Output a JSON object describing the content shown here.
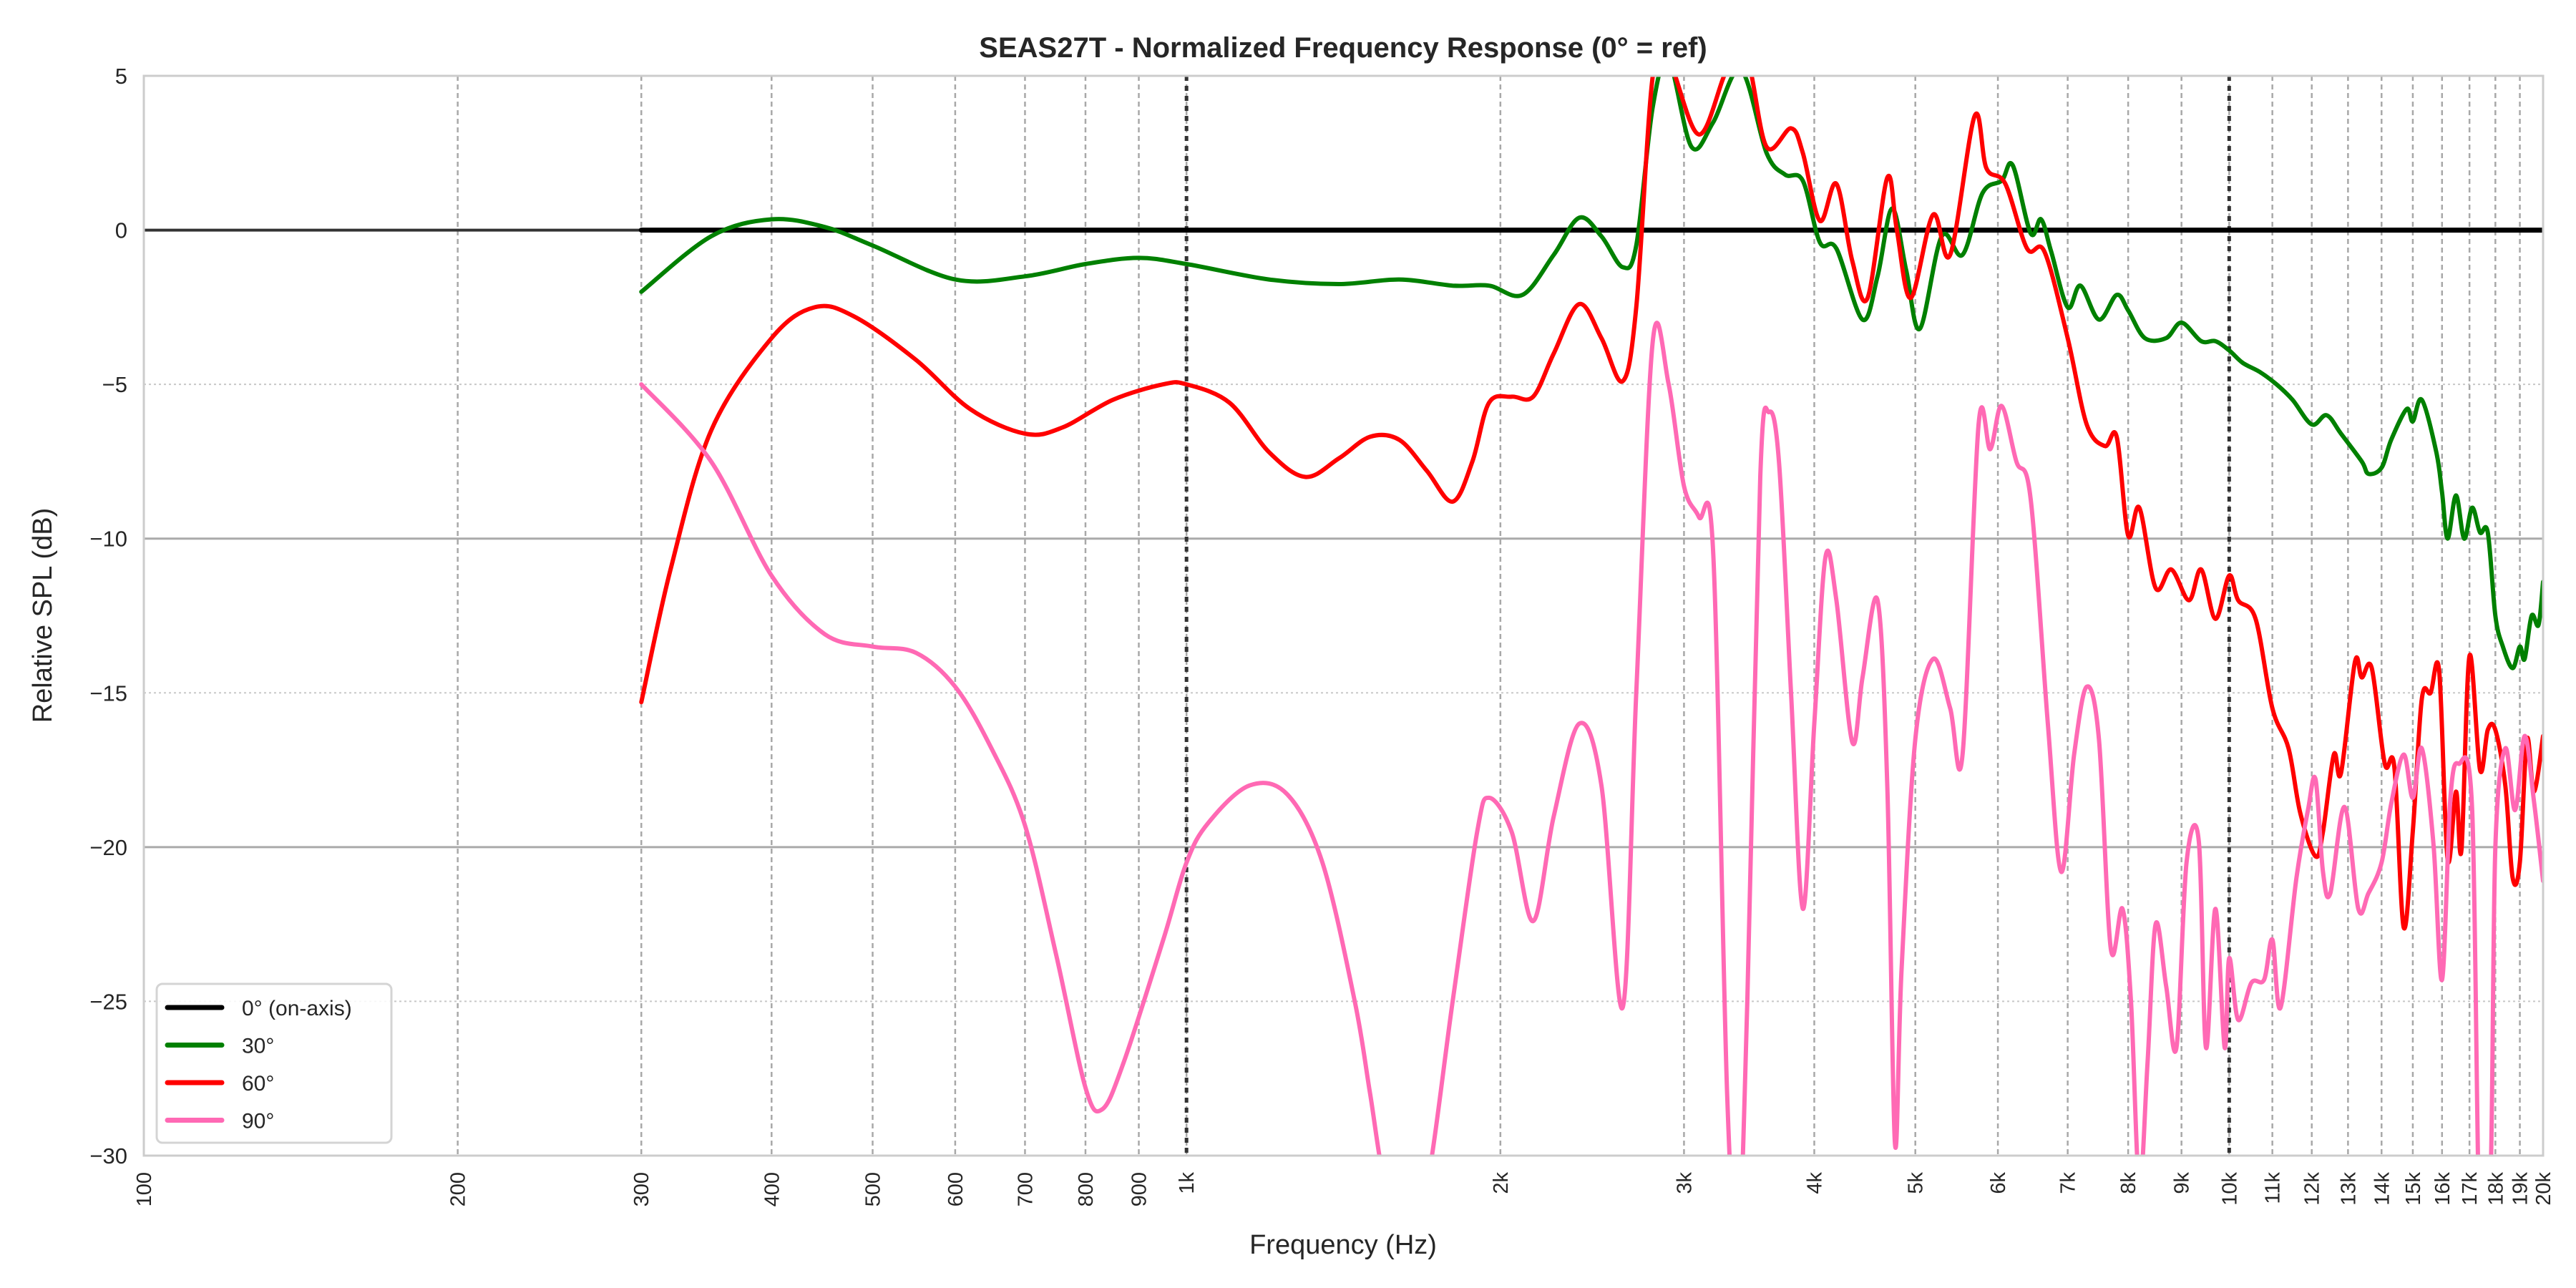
{
  "chart_data": {
    "type": "line",
    "title": "SEAS27T - Normalized Frequency Response (0° = ref)",
    "xlabel": "Frequency (Hz)",
    "ylabel": "Relative SPL (dB)",
    "xscale": "log",
    "xlim": [
      100,
      20000
    ],
    "ylim": [
      -30,
      5
    ],
    "grid": true,
    "legend_position": "lower-left",
    "reference_lines_hz": [
      1000,
      10000
    ],
    "yticks": [
      5,
      0,
      -5,
      -10,
      -15,
      -20,
      -25,
      -30
    ],
    "ytick_labels": [
      "5",
      "0",
      "−5",
      "−10",
      "−15",
      "−20",
      "−25",
      "−30"
    ],
    "xticks": [
      100,
      200,
      300,
      400,
      500,
      600,
      700,
      800,
      900,
      1000,
      2000,
      3000,
      4000,
      5000,
      6000,
      7000,
      8000,
      9000,
      10000,
      11000,
      12000,
      13000,
      14000,
      15000,
      16000,
      17000,
      18000,
      19000,
      20000
    ],
    "xtick_labels": [
      "100",
      "200",
      "300",
      "400",
      "500",
      "600",
      "700",
      "800",
      "900",
      "1k",
      "2k",
      "3k",
      "4k",
      "5k",
      "6k",
      "7k",
      "8k",
      "9k",
      "10k",
      "11k",
      "12k",
      "13k",
      "14k",
      "15k",
      "16k",
      "17k",
      "18k",
      "19k",
      "20k"
    ],
    "series": [
      {
        "name": "0° (on-axis)",
        "color": "#000000",
        "points": [
          [
            300,
            0
          ],
          [
            20000,
            0
          ]
        ]
      },
      {
        "name": "30°",
        "color": "#008000",
        "points": [
          [
            300,
            -2
          ],
          [
            350,
            -0.2
          ],
          [
            400,
            0.35
          ],
          [
            450,
            0.1
          ],
          [
            500,
            -0.5
          ],
          [
            600,
            -1.6
          ],
          [
            700,
            -1.5
          ],
          [
            800,
            -1.1
          ],
          [
            900,
            -0.9
          ],
          [
            1000,
            -1.1
          ],
          [
            1200,
            -1.6
          ],
          [
            1400,
            -1.75
          ],
          [
            1600,
            -1.6
          ],
          [
            1800,
            -1.8
          ],
          [
            1950,
            -1.8
          ],
          [
            2100,
            -2.1
          ],
          [
            2250,
            -0.8
          ],
          [
            2380,
            0.4
          ],
          [
            2500,
            -0.2
          ],
          [
            2620,
            -1.2
          ],
          [
            2700,
            -0.5
          ],
          [
            2800,
            4
          ],
          [
            2900,
            5.5
          ],
          [
            3050,
            2.7
          ],
          [
            3200,
            3.5
          ],
          [
            3400,
            5.2
          ],
          [
            3600,
            2.5
          ],
          [
            3750,
            1.8
          ],
          [
            3900,
            1.6
          ],
          [
            4050,
            -0.4
          ],
          [
            4200,
            -0.6
          ],
          [
            4450,
            -2.9
          ],
          [
            4600,
            -1.5
          ],
          [
            4750,
            0.7
          ],
          [
            4900,
            -1.3
          ],
          [
            5050,
            -3.2
          ],
          [
            5300,
            -0.2
          ],
          [
            5550,
            -0.8
          ],
          [
            5800,
            1.2
          ],
          [
            6050,
            1.6
          ],
          [
            6200,
            2.1
          ],
          [
            6450,
            -0.1
          ],
          [
            6600,
            0.35
          ],
          [
            6750,
            -0.7
          ],
          [
            7000,
            -2.5
          ],
          [
            7200,
            -1.8
          ],
          [
            7500,
            -2.9
          ],
          [
            7800,
            -2.1
          ],
          [
            8000,
            -2.6
          ],
          [
            8300,
            -3.5
          ],
          [
            8700,
            -3.5
          ],
          [
            9000,
            -3.0
          ],
          [
            9400,
            -3.6
          ],
          [
            9700,
            -3.6
          ],
          [
            10000,
            -3.9
          ],
          [
            10300,
            -4.3
          ],
          [
            10700,
            -4.6
          ],
          [
            11100,
            -5.0
          ],
          [
            11500,
            -5.5
          ],
          [
            12000,
            -6.3
          ],
          [
            12400,
            -6.0
          ],
          [
            12800,
            -6.6
          ],
          [
            13400,
            -7.5
          ],
          [
            13600,
            -7.9
          ],
          [
            14000,
            -7.7
          ],
          [
            14300,
            -6.8
          ],
          [
            14800,
            -5.8
          ],
          [
            15000,
            -6.2
          ],
          [
            15300,
            -5.5
          ],
          [
            15800,
            -7.2
          ],
          [
            16000,
            -8.5
          ],
          [
            16200,
            -10
          ],
          [
            16500,
            -8.6
          ],
          [
            16800,
            -10
          ],
          [
            17100,
            -9.0
          ],
          [
            17400,
            -9.8
          ],
          [
            17700,
            -9.8
          ],
          [
            18000,
            -12.5
          ],
          [
            18300,
            -13.5
          ],
          [
            18700,
            -14.2
          ],
          [
            19000,
            -13.5
          ],
          [
            19200,
            -13.9
          ],
          [
            19500,
            -12.5
          ],
          [
            19800,
            -12.8
          ],
          [
            20000,
            -11.4
          ]
        ]
      },
      {
        "name": "60°",
        "color": "#ff0000",
        "points": [
          [
            300,
            -15.3
          ],
          [
            320,
            -11
          ],
          [
            350,
            -6.5
          ],
          [
            400,
            -3.5
          ],
          [
            440,
            -2.5
          ],
          [
            480,
            -2.8
          ],
          [
            550,
            -4.2
          ],
          [
            620,
            -5.8
          ],
          [
            700,
            -6.6
          ],
          [
            760,
            -6.4
          ],
          [
            850,
            -5.5
          ],
          [
            950,
            -5.0
          ],
          [
            1000,
            -5.0
          ],
          [
            1100,
            -5.6
          ],
          [
            1200,
            -7.2
          ],
          [
            1300,
            -8.0
          ],
          [
            1400,
            -7.4
          ],
          [
            1500,
            -6.7
          ],
          [
            1600,
            -6.8
          ],
          [
            1700,
            -7.8
          ],
          [
            1800,
            -8.8
          ],
          [
            1880,
            -7.5
          ],
          [
            1950,
            -5.6
          ],
          [
            2050,
            -5.4
          ],
          [
            2150,
            -5.4
          ],
          [
            2250,
            -4.0
          ],
          [
            2380,
            -2.4
          ],
          [
            2500,
            -3.5
          ],
          [
            2620,
            -4.9
          ],
          [
            2700,
            -2.5
          ],
          [
            2800,
            5
          ],
          [
            2900,
            5.5
          ],
          [
            3100,
            3.1
          ],
          [
            3300,
            5.2
          ],
          [
            3450,
            5.5
          ],
          [
            3600,
            2.7
          ],
          [
            3800,
            3.3
          ],
          [
            3900,
            2.5
          ],
          [
            4050,
            0.3
          ],
          [
            4200,
            1.5
          ],
          [
            4350,
            -1.0
          ],
          [
            4500,
            -2.2
          ],
          [
            4700,
            1.7
          ],
          [
            4800,
            0
          ],
          [
            4950,
            -2.2
          ],
          [
            5200,
            0.5
          ],
          [
            5400,
            -0.8
          ],
          [
            5700,
            3.7
          ],
          [
            5850,
            2.0
          ],
          [
            6100,
            1.5
          ],
          [
            6400,
            -0.6
          ],
          [
            6650,
            -0.7
          ],
          [
            7000,
            -3.5
          ],
          [
            7300,
            -6.3
          ],
          [
            7600,
            -7.0
          ],
          [
            7800,
            -6.7
          ],
          [
            8000,
            -9.9
          ],
          [
            8200,
            -9.0
          ],
          [
            8500,
            -11.6
          ],
          [
            8800,
            -11
          ],
          [
            9150,
            -12.0
          ],
          [
            9400,
            -11
          ],
          [
            9700,
            -12.6
          ],
          [
            10000,
            -11.2
          ],
          [
            10200,
            -12.0
          ],
          [
            10600,
            -12.6
          ],
          [
            11000,
            -15.5
          ],
          [
            11400,
            -16.8
          ],
          [
            11700,
            -18.9
          ],
          [
            12100,
            -20.3
          ],
          [
            12300,
            -19.5
          ],
          [
            12600,
            -17.0
          ],
          [
            12800,
            -17.6
          ],
          [
            13200,
            -14
          ],
          [
            13400,
            -14.5
          ],
          [
            13700,
            -14.2
          ],
          [
            14100,
            -17.3
          ],
          [
            14400,
            -17.4
          ],
          [
            14700,
            -22.6
          ],
          [
            15000,
            -19.5
          ],
          [
            15300,
            -15.2
          ],
          [
            15600,
            -15
          ],
          [
            15900,
            -14.3
          ],
          [
            16200,
            -20.4
          ],
          [
            16500,
            -18.2
          ],
          [
            16700,
            -20.1
          ],
          [
            17000,
            -13.8
          ],
          [
            17400,
            -17.5
          ],
          [
            17700,
            -16.2
          ],
          [
            18000,
            -16.2
          ],
          [
            18400,
            -18.0
          ],
          [
            18700,
            -21.0
          ],
          [
            19000,
            -20.5
          ],
          [
            19300,
            -16.5
          ],
          [
            19600,
            -18.2
          ],
          [
            20000,
            -16.4
          ]
        ]
      },
      {
        "name": "90°",
        "color": "#ff69b4",
        "points": [
          [
            300,
            -5
          ],
          [
            350,
            -7.5
          ],
          [
            400,
            -11.2
          ],
          [
            450,
            -13.1
          ],
          [
            500,
            -13.5
          ],
          [
            550,
            -13.7
          ],
          [
            600,
            -14.8
          ],
          [
            650,
            -16.8
          ],
          [
            700,
            -19.3
          ],
          [
            750,
            -23.5
          ],
          [
            800,
            -27.8
          ],
          [
            830,
            -28.5
          ],
          [
            870,
            -27
          ],
          [
            950,
            -23
          ],
          [
            1000,
            -20.5
          ],
          [
            1050,
            -19.2
          ],
          [
            1150,
            -18
          ],
          [
            1250,
            -18.3
          ],
          [
            1350,
            -20.5
          ],
          [
            1450,
            -25
          ],
          [
            1500,
            -28
          ],
          [
            1550,
            -31
          ],
          [
            1620,
            -33
          ],
          [
            1700,
            -31
          ],
          [
            1800,
            -25
          ],
          [
            1900,
            -19.5
          ],
          [
            1950,
            -18.4
          ],
          [
            2050,
            -19.5
          ],
          [
            2150,
            -22.4
          ],
          [
            2250,
            -19
          ],
          [
            2380,
            -16
          ],
          [
            2500,
            -18
          ],
          [
            2620,
            -25.2
          ],
          [
            2700,
            -15
          ],
          [
            2800,
            -3.6
          ],
          [
            2900,
            -5
          ],
          [
            3000,
            -8.3
          ],
          [
            3100,
            -9.3
          ],
          [
            3200,
            -10.5
          ],
          [
            3300,
            -28
          ],
          [
            3380,
            -33
          ],
          [
            3450,
            -25
          ],
          [
            3550,
            -8
          ],
          [
            3620,
            -5.9
          ],
          [
            3700,
            -7.5
          ],
          [
            3800,
            -15
          ],
          [
            3900,
            -22
          ],
          [
            4000,
            -16
          ],
          [
            4100,
            -10.6
          ],
          [
            4200,
            -12
          ],
          [
            4350,
            -16.6
          ],
          [
            4450,
            -14.5
          ],
          [
            4600,
            -12
          ],
          [
            4700,
            -18
          ],
          [
            4780,
            -29.6
          ],
          [
            4850,
            -24
          ],
          [
            5000,
            -16.5
          ],
          [
            5200,
            -13.9
          ],
          [
            5400,
            -15.5
          ],
          [
            5550,
            -17
          ],
          [
            5750,
            -6.3
          ],
          [
            5900,
            -7.1
          ],
          [
            6050,
            -5.7
          ],
          [
            6250,
            -7.5
          ],
          [
            6450,
            -8.7
          ],
          [
            6700,
            -16
          ],
          [
            6900,
            -20.8
          ],
          [
            7100,
            -17
          ],
          [
            7300,
            -14.8
          ],
          [
            7500,
            -16.5
          ],
          [
            7700,
            -23.3
          ],
          [
            7900,
            -22
          ],
          [
            8050,
            -25
          ],
          [
            8200,
            -31
          ],
          [
            8350,
            -27
          ],
          [
            8500,
            -22.5
          ],
          [
            8700,
            -24.5
          ],
          [
            8900,
            -26.5
          ],
          [
            9100,
            -20.5
          ],
          [
            9350,
            -19.8
          ],
          [
            9500,
            -26.5
          ],
          [
            9700,
            -22
          ],
          [
            9900,
            -26.5
          ],
          [
            10000,
            -23.6
          ],
          [
            10200,
            -25.6
          ],
          [
            10500,
            -24.4
          ],
          [
            10800,
            -24.3
          ],
          [
            11000,
            -23
          ],
          [
            11200,
            -25.2
          ],
          [
            11600,
            -21
          ],
          [
            11900,
            -18.8
          ],
          [
            12100,
            -17.8
          ],
          [
            12300,
            -20.8
          ],
          [
            12500,
            -21.5
          ],
          [
            12900,
            -18.7
          ],
          [
            13300,
            -22
          ],
          [
            13600,
            -21.5
          ],
          [
            14000,
            -20.5
          ],
          [
            14300,
            -18.6
          ],
          [
            14700,
            -17.0
          ],
          [
            15000,
            -18.4
          ],
          [
            15300,
            -16.8
          ],
          [
            15700,
            -19.9
          ],
          [
            16000,
            -24.3
          ],
          [
            16300,
            -18.4
          ],
          [
            16600,
            -17.3
          ],
          [
            17100,
            -18.8
          ],
          [
            17400,
            -33
          ],
          [
            17800,
            -31
          ],
          [
            18000,
            -20
          ],
          [
            18400,
            -16.8
          ],
          [
            18800,
            -18.8
          ],
          [
            19200,
            -16.4
          ],
          [
            19600,
            -18.5
          ],
          [
            20000,
            -21.1
          ]
        ]
      }
    ]
  }
}
